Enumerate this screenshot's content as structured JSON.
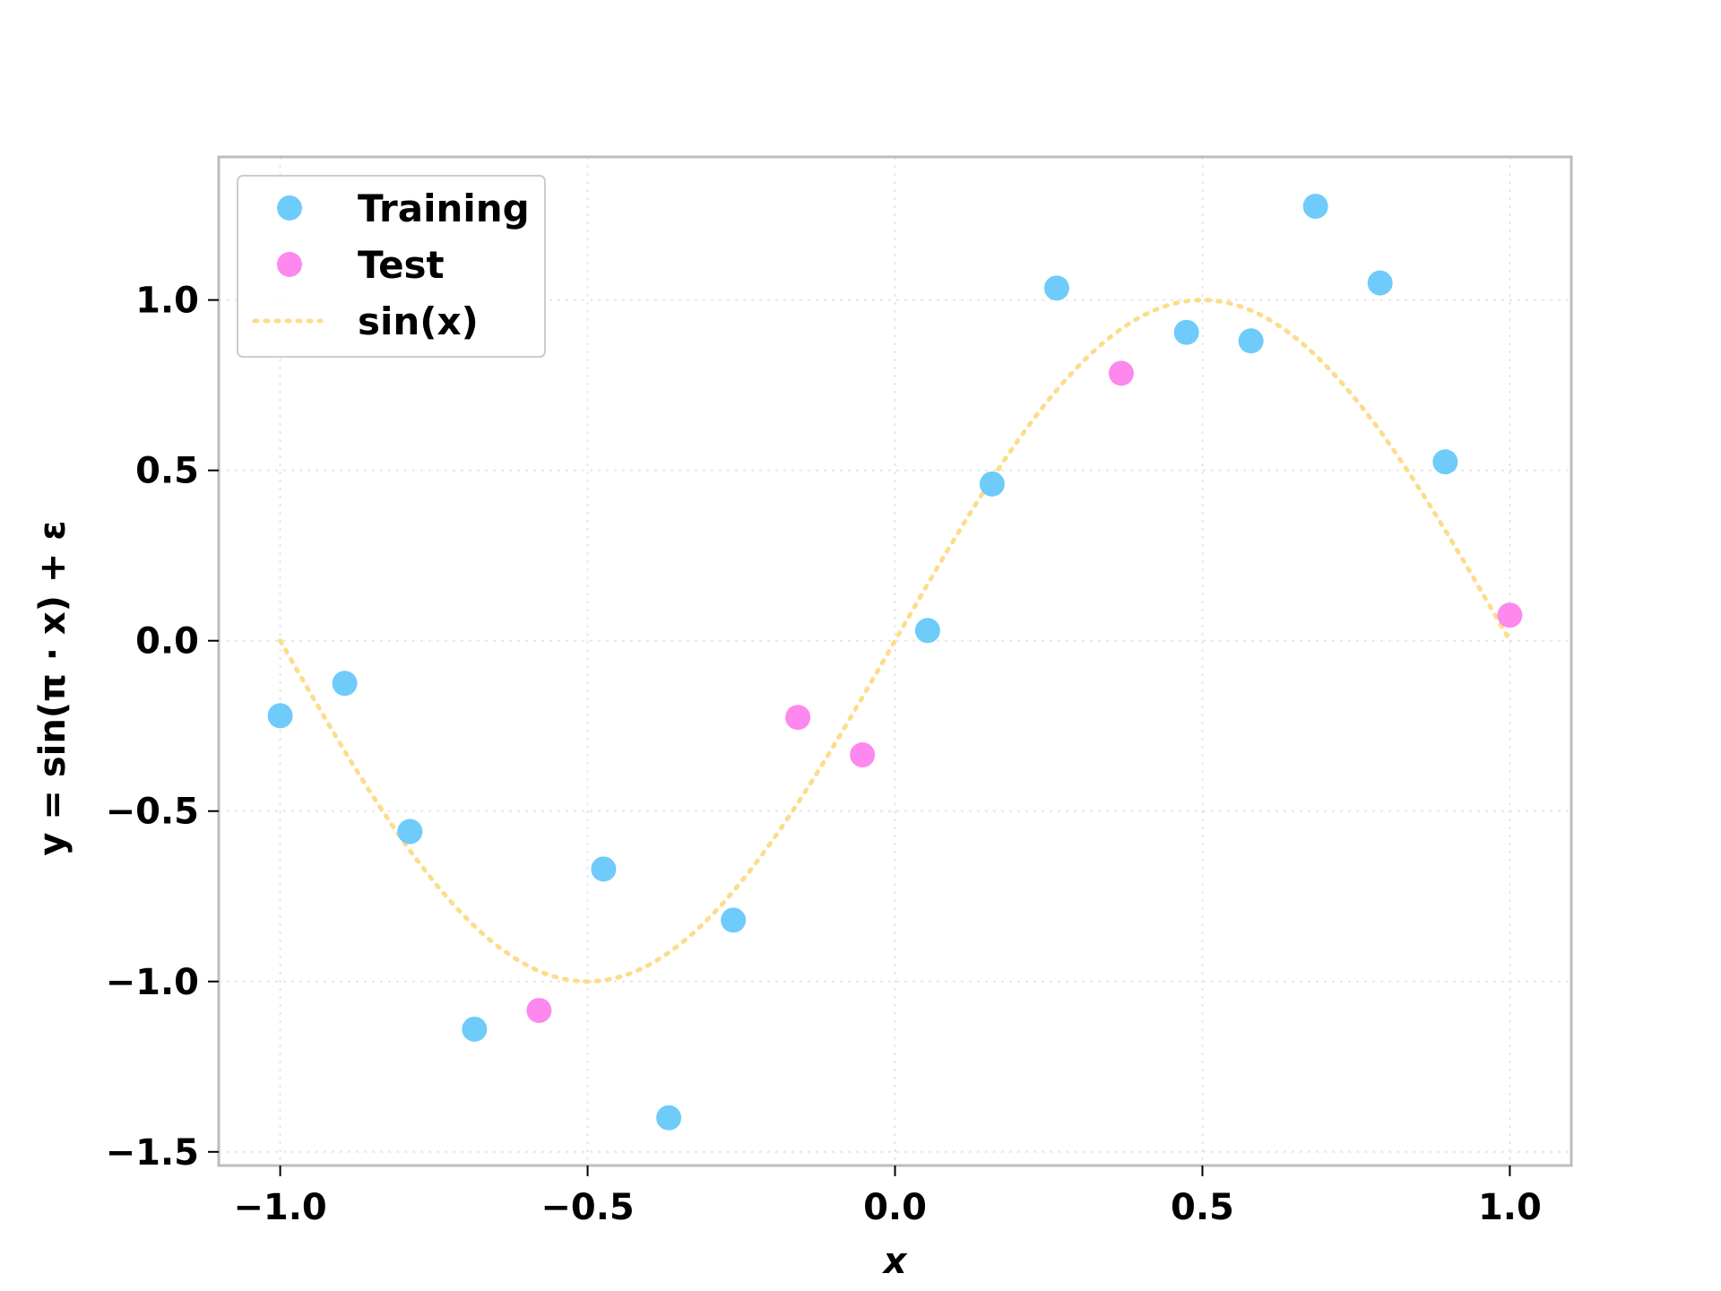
{
  "chart_data": {
    "type": "scatter",
    "xlabel": "x",
    "ylabel": "y = sin(π · x) + ε",
    "xlim": [
      -1.1,
      1.1
    ],
    "ylim": [
      -1.54,
      1.42
    ],
    "xticks": [
      -1.0,
      -0.5,
      0.0,
      0.5,
      1.0
    ],
    "xtick_labels": [
      "−1.0",
      "−0.5",
      "0.0",
      "0.5",
      "1.0"
    ],
    "yticks": [
      -1.5,
      -1.0,
      -0.5,
      0.0,
      0.5,
      1.0
    ],
    "ytick_labels": [
      "−1.5",
      "−1.0",
      "−0.5",
      "0.0",
      "0.5",
      "1.0"
    ],
    "grid": true,
    "legend_position": "top-left",
    "series": [
      {
        "name": "Training",
        "kind": "scatter",
        "color": "#6ecbfa",
        "points": [
          {
            "x": -1.0,
            "y": -0.22
          },
          {
            "x": -0.895,
            "y": -0.125
          },
          {
            "x": -0.789,
            "y": -0.56
          },
          {
            "x": -0.684,
            "y": -1.14
          },
          {
            "x": -0.474,
            "y": -0.67
          },
          {
            "x": -0.368,
            "y": -1.4
          },
          {
            "x": -0.263,
            "y": -0.82
          },
          {
            "x": 0.053,
            "y": 0.03
          },
          {
            "x": 0.158,
            "y": 0.46
          },
          {
            "x": 0.263,
            "y": 1.035
          },
          {
            "x": 0.474,
            "y": 0.905
          },
          {
            "x": 0.579,
            "y": 0.88
          },
          {
            "x": 0.684,
            "y": 1.275
          },
          {
            "x": 0.789,
            "y": 1.05
          },
          {
            "x": 0.895,
            "y": 0.525
          }
        ]
      },
      {
        "name": "Test",
        "kind": "scatter",
        "color": "#fd88ee",
        "points": [
          {
            "x": -0.579,
            "y": -1.085
          },
          {
            "x": -0.158,
            "y": -0.225
          },
          {
            "x": -0.053,
            "y": -0.335
          },
          {
            "x": 0.368,
            "y": 0.785
          },
          {
            "x": 1.0,
            "y": 0.075
          }
        ]
      },
      {
        "name": "sin(x)",
        "kind": "line",
        "style": "dotted",
        "color": "#fddc8c",
        "function": "sin(pi*x)",
        "x_range": [
          -1.0,
          1.0
        ]
      }
    ]
  }
}
